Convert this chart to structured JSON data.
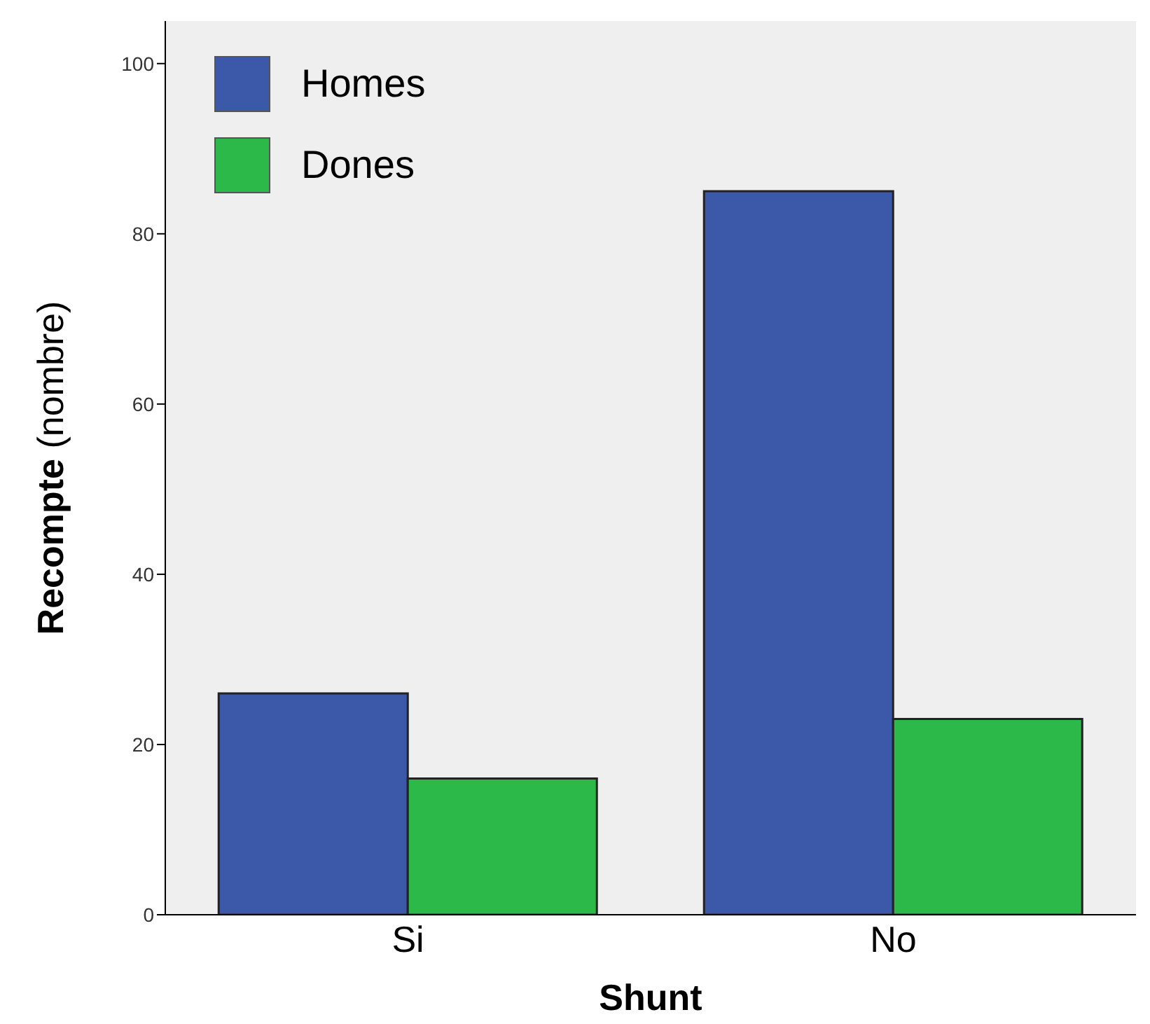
{
  "chart_data": {
    "type": "bar",
    "xlabel": "Shunt",
    "ylabel": "Recompte (nombre)",
    "categories": [
      "Si",
      "No"
    ],
    "series": [
      {
        "name": "Homes",
        "color": "#3c58a8",
        "values": [
          26,
          85
        ]
      },
      {
        "name": "Dones",
        "color": "#2db84a",
        "values": [
          16,
          23
        ]
      }
    ],
    "ylim": [
      0,
      105
    ],
    "yticks": [
      0,
      20,
      40,
      60,
      80,
      100
    ],
    "legend": "top left"
  }
}
